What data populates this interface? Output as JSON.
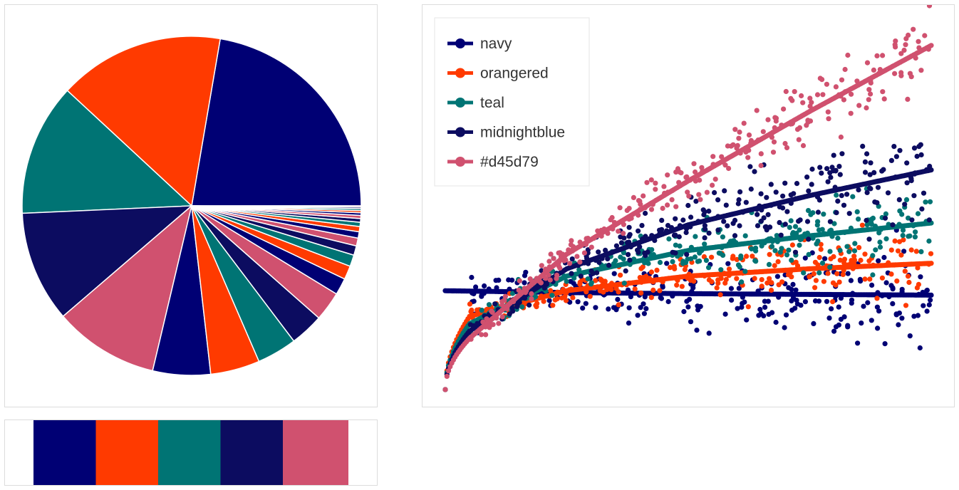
{
  "palette": [
    {
      "name": "navy",
      "hex": "#000074"
    },
    {
      "name": "orangered",
      "hex": "#ff3a00"
    },
    {
      "name": "teal",
      "hex": "#007474"
    },
    {
      "name": "midnightblue",
      "hex": "#0c0c60"
    },
    {
      "name": "#d45d79",
      "hex": "#d0516f"
    }
  ],
  "chart_data": [
    {
      "type": "pie",
      "title": "",
      "slices": [
        {
          "value": 22.3,
          "color": "#000074"
        },
        {
          "value": 15.8,
          "color": "#ff3a00"
        },
        {
          "value": 12.6,
          "color": "#007474"
        },
        {
          "value": 10.6,
          "color": "#0c0c60"
        },
        {
          "value": 10.0,
          "color": "#d0516f"
        },
        {
          "value": 5.5,
          "color": "#000074"
        },
        {
          "value": 4.7,
          "color": "#ff3a00"
        },
        {
          "value": 3.8,
          "color": "#007474"
        },
        {
          "value": 3.2,
          "color": "#0c0c60"
        },
        {
          "value": 2.8,
          "color": "#d0516f"
        },
        {
          "value": 1.6,
          "color": "#000074"
        },
        {
          "value": 1.3,
          "color": "#ff3a00"
        },
        {
          "value": 1.1,
          "color": "#007474"
        },
        {
          "value": 0.9,
          "color": "#0c0c60"
        },
        {
          "value": 0.75,
          "color": "#d0516f"
        },
        {
          "value": 0.6,
          "color": "#000074"
        },
        {
          "value": 0.5,
          "color": "#ff3a00"
        },
        {
          "value": 0.4,
          "color": "#007474"
        },
        {
          "value": 0.35,
          "color": "#0c0c60"
        },
        {
          "value": 0.3,
          "color": "#d0516f"
        },
        {
          "value": 0.25,
          "color": "#000074"
        },
        {
          "value": 0.2,
          "color": "#ff3a00"
        },
        {
          "value": 0.18,
          "color": "#007474"
        },
        {
          "value": 0.15,
          "color": "#0c0c60"
        },
        {
          "value": 0.12,
          "color": "#d0516f"
        }
      ]
    },
    {
      "type": "scatter",
      "title": "",
      "xlabel": "",
      "ylabel": "",
      "xlim": [
        0,
        1
      ],
      "ylim": [
        0,
        1
      ],
      "grid": false,
      "legend_position": "top-left",
      "series": [
        {
          "name": "navy",
          "color": "#000074",
          "shape": "flat",
          "trend": [
            [
              0,
              0.27
            ],
            [
              0.25,
              0.265
            ],
            [
              0.5,
              0.262
            ],
            [
              0.75,
              0.26
            ],
            [
              1,
              0.258
            ]
          ],
          "spread": 0.05
        },
        {
          "name": "orangered",
          "color": "#ff3a00",
          "shape": "sqrt",
          "trend": [
            [
              0,
              0.0
            ],
            [
              0.05,
              0.2
            ],
            [
              0.25,
              0.27
            ],
            [
              0.5,
              0.31
            ],
            [
              0.75,
              0.33
            ],
            [
              1,
              0.345
            ]
          ],
          "spread": 0.035
        },
        {
          "name": "teal",
          "color": "#007474",
          "shape": "sqrt",
          "trend": [
            [
              0,
              0.0
            ],
            [
              0.05,
              0.18
            ],
            [
              0.25,
              0.31
            ],
            [
              0.5,
              0.38
            ],
            [
              0.75,
              0.42
            ],
            [
              1,
              0.455
            ]
          ],
          "spread": 0.04
        },
        {
          "name": "midnightblue",
          "color": "#0c0c60",
          "shape": "sqrt",
          "trend": [
            [
              0,
              0.0
            ],
            [
              0.05,
              0.16
            ],
            [
              0.25,
              0.33
            ],
            [
              0.5,
              0.45
            ],
            [
              0.75,
              0.53
            ],
            [
              1,
              0.6
            ]
          ],
          "spread": 0.05
        },
        {
          "name": "#d45d79",
          "color": "#d0516f",
          "shape": "linear",
          "trend": [
            [
              0,
              0.0
            ],
            [
              0.05,
              0.14
            ],
            [
              0.25,
              0.37
            ],
            [
              0.5,
              0.57
            ],
            [
              0.75,
              0.76
            ],
            [
              1,
              0.94
            ]
          ],
          "spread": 0.04
        }
      ]
    }
  ]
}
